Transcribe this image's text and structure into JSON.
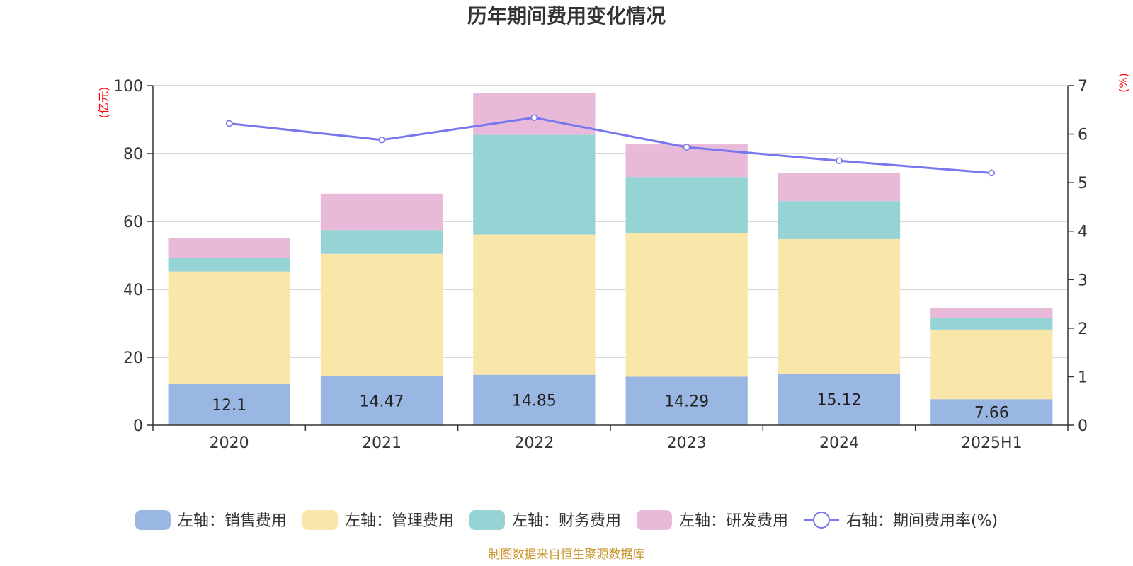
{
  "chart_data": {
    "type": "bar",
    "title": "历年期间费用变化情况",
    "categories": [
      "2020",
      "2021",
      "2022",
      "2023",
      "2024",
      "2025H1"
    ],
    "left_axis_unit": "(亿元)",
    "right_axis_unit": "(%)",
    "ylim_left": [
      0,
      100
    ],
    "yticks_left": [
      0,
      20,
      40,
      60,
      80,
      100
    ],
    "ylim_right": [
      0,
      7
    ],
    "yticks_right": [
      0,
      1,
      2,
      3,
      4,
      5,
      6,
      7
    ],
    "grid": true,
    "legend_position": "bottom",
    "series": [
      {
        "name": "左轴：销售费用",
        "type": "bar",
        "axis": "left",
        "color": "#9ab6e2",
        "values": [
          12.1,
          14.47,
          14.85,
          14.29,
          15.12,
          7.66
        ],
        "labels": [
          "12.1",
          "14.47",
          "14.85",
          "14.29",
          "15.12",
          "7.66"
        ]
      },
      {
        "name": "左轴：管理费用",
        "type": "bar",
        "axis": "left",
        "color": "#f8e7a8",
        "values": [
          33.2,
          36.0,
          41.3,
          42.2,
          39.7,
          20.5
        ]
      },
      {
        "name": "左轴：财务费用",
        "type": "bar",
        "axis": "left",
        "color": "#96d3d4",
        "values": [
          3.9,
          7.0,
          29.4,
          16.6,
          11.2,
          3.5
        ]
      },
      {
        "name": "左轴：研发费用",
        "type": "bar",
        "axis": "left",
        "color": "#e8b9d9",
        "values": [
          5.8,
          10.7,
          12.2,
          9.6,
          8.2,
          2.8
        ]
      },
      {
        "name": "右轴：期间费用率(%)",
        "type": "line",
        "axis": "right",
        "color": "#7676ee",
        "values": [
          6.22,
          5.88,
          6.34,
          5.73,
          5.45,
          5.2
        ]
      }
    ],
    "source": "制图数据来自恒生聚源数据库"
  }
}
